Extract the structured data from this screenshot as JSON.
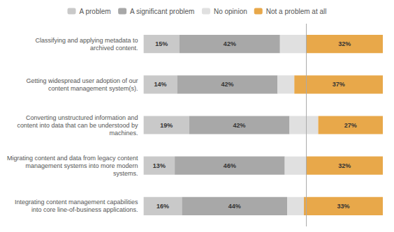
{
  "chart_data": {
    "type": "bar",
    "orientation": "horizontal",
    "stacked": true,
    "categories": [
      "Classifying and applying metadata to\narchived content.",
      "Getting widespread user adoption of our\ncontent management system(s).",
      "Converting unstructured information and\ncontent into data that can be understood by\nmachines.",
      "Migrating content and data from legacy content\nmanagement systems into more modern\nsystems.",
      "Integrating content management capabilities\ninto core line-of-business applications."
    ],
    "series": [
      {
        "name": "A problem",
        "color": "#c9c9c9",
        "values": [
          15,
          14,
          19,
          13,
          16
        ],
        "value_labels": [
          "15%",
          "14%",
          "19%",
          "13%",
          "16%"
        ]
      },
      {
        "name": "A significant problem",
        "color": "#a8a8a8",
        "values": [
          42,
          42,
          42,
          46,
          44
        ],
        "value_labels": [
          "42%",
          "42%",
          "42%",
          "46%",
          "44%"
        ]
      },
      {
        "name": "No opinion",
        "color": "#e0e0e0",
        "values": [
          11,
          7,
          12,
          9,
          7
        ],
        "value_labels": [
          null,
          null,
          null,
          null,
          null
        ]
      },
      {
        "name": "Not a problem at all",
        "color": "#e8a84a",
        "values": [
          32,
          37,
          27,
          32,
          33
        ],
        "value_labels": [
          "32%",
          "37%",
          "27%",
          "32%",
          "33%"
        ]
      }
    ],
    "reference_line": 68,
    "xlim": [
      0,
      100
    ],
    "data_labels": true,
    "tick_labels": "y",
    "grid": false,
    "legend": "top"
  }
}
